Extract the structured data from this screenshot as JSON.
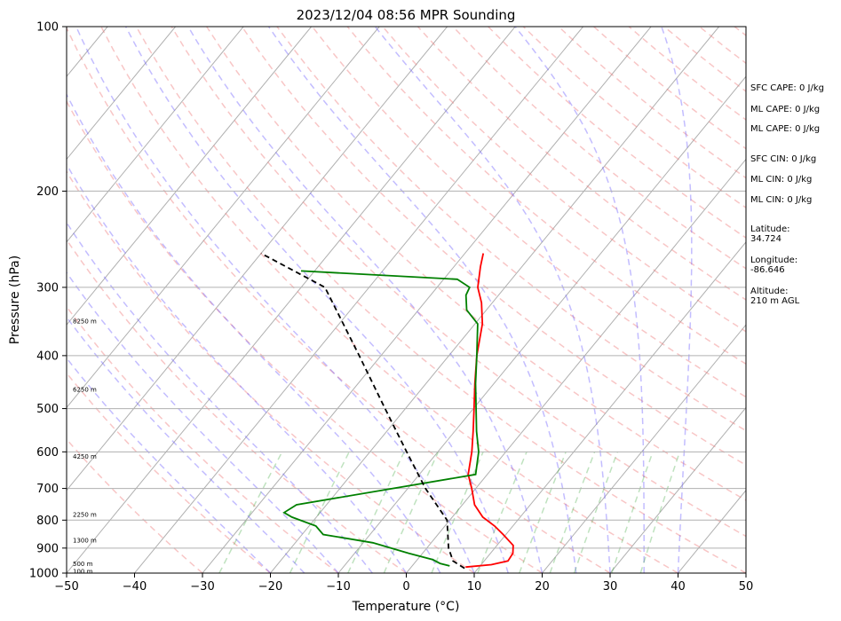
{
  "chart_data": {
    "type": "line",
    "title": "2023/12/04 08:56 MPR Sounding",
    "xlabel": "Temperature (°C)",
    "ylabel": "Pressure (hPa)",
    "xlim": [
      -50,
      50
    ],
    "ylim": [
      1000,
      100
    ],
    "yscale": "log",
    "skew": "skew-T log-p",
    "grid": true,
    "x_ticks": [
      -50,
      -40,
      -30,
      -20,
      -10,
      0,
      10,
      20,
      30,
      40,
      50
    ],
    "x_tick_labels": [
      "−50",
      "−40",
      "−30",
      "−20",
      "−10",
      "0",
      "10",
      "20",
      "30",
      "40",
      "50"
    ],
    "y_ticks": [
      1000,
      900,
      800,
      700,
      600,
      500,
      400,
      300,
      200,
      100
    ],
    "height_labels": [
      {
        "p": 990,
        "label": "100 m"
      },
      {
        "p": 960,
        "label": "500 m"
      },
      {
        "p": 870,
        "label": "1300 m"
      },
      {
        "p": 780,
        "label": "2250 m"
      },
      {
        "p": 610,
        "label": "4250 m"
      },
      {
        "p": 460,
        "label": "6250 m"
      },
      {
        "p": 345,
        "label": "8250 m"
      }
    ],
    "series": [
      {
        "color": "#ff0000",
        "x": [
          8,
          11.5,
          13.5,
          13.3,
          12.4,
          9.6,
          7.3,
          4.5,
          1.8,
          -0.6,
          -2.8,
          -5.0,
          -7.3,
          -9.9,
          -12.8,
          -15.9,
          -18.9,
          -21.6,
          -24.0,
          -26.1,
          -27.3
        ],
        "y": [
          975,
          965,
          950,
          920,
          890,
          850,
          820,
          790,
          750,
          700,
          660,
          600,
          550,
          500,
          450,
          400,
          350,
          320,
          300,
          275,
          260
        ]
      },
      {
        "color": "#008000",
        "x": [
          5.5,
          3.8,
          2.3,
          -2.0,
          -8.6,
          -16.9,
          -19.0,
          -23.6,
          -25.3,
          -24.4,
          -1.7,
          -4.0,
          -6.8,
          -9.6,
          -12.7,
          -15.9,
          -19.6,
          -22.9,
          -24.8,
          -25.2,
          -28.0,
          -52.0
        ],
        "y": [
          970,
          960,
          945,
          920,
          880,
          850,
          820,
          790,
          775,
          750,
          660,
          600,
          550,
          500,
          450,
          400,
          350,
          330,
          310,
          300,
          290,
          280
        ]
      },
      {
        "color": "#000000",
        "x": [
          8,
          5.4,
          3.2,
          -0.4,
          -7.4,
          -14.6,
          -23.0,
          -33.2,
          -46.5,
          -60.0
        ],
        "y": [
          980,
          950,
          900,
          800,
          700,
          600,
          500,
          400,
          300,
          260
        ]
      }
    ]
  },
  "annotations": [
    {
      "lines": [
        "SFC CAPE: 0 J/kg"
      ]
    },
    {
      "lines": [
        "ML CAPE: 0 J/kg"
      ]
    },
    {
      "lines": [
        "ML CAPE: 0 J/kg"
      ]
    },
    {
      "lines": [
        "SFC CIN: 0 J/kg"
      ]
    },
    {
      "lines": [
        "ML CIN: 0 J/kg"
      ]
    },
    {
      "lines": [
        "ML CIN: 0 J/kg"
      ]
    },
    {
      "lines": [
        "Latitude:",
        "34.724"
      ]
    },
    {
      "lines": [
        "Longitude:",
        "-86.646"
      ]
    },
    {
      "lines": [
        "Altitude:",
        "210 m AGL"
      ]
    }
  ]
}
